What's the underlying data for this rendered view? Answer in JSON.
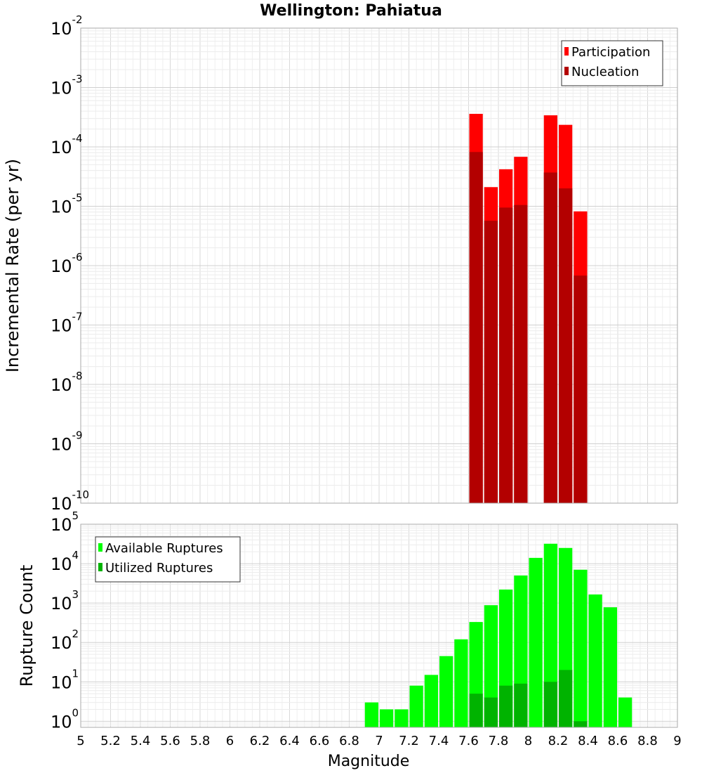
{
  "title": "Wellington: Pahiatua",
  "chart_data": [
    {
      "type": "bar",
      "yscale": "log",
      "ylabel": "Incremental Rate (per yr)",
      "ylim": [
        1e-10,
        0.01
      ],
      "yticks": [
        {
          "base": "10",
          "exp": "-10"
        },
        {
          "base": "10",
          "exp": "-9"
        },
        {
          "base": "10",
          "exp": "-8"
        },
        {
          "base": "10",
          "exp": "-7"
        },
        {
          "base": "10",
          "exp": "-6"
        },
        {
          "base": "10",
          "exp": "-5"
        },
        {
          "base": "10",
          "exp": "-4"
        },
        {
          "base": "10",
          "exp": "-3"
        },
        {
          "base": "10",
          "exp": "-2"
        }
      ],
      "legend_position": "top-right",
      "bar_width": 0.1,
      "series": [
        {
          "name": "Participation",
          "color": "#ff0000",
          "points": [
            {
              "x": 7.65,
              "y": 0.00036
            },
            {
              "x": 7.75,
              "y": 2.1e-05
            },
            {
              "x": 7.85,
              "y": 4.2e-05
            },
            {
              "x": 7.95,
              "y": 6.8e-05
            },
            {
              "x": 8.15,
              "y": 0.00034
            },
            {
              "x": 8.25,
              "y": 0.000235
            },
            {
              "x": 8.35,
              "y": 8.2e-06
            }
          ]
        },
        {
          "name": "Nucleation",
          "color": "#b30000",
          "points": [
            {
              "x": 7.65,
              "y": 8.2e-05
            },
            {
              "x": 7.75,
              "y": 5.7e-06
            },
            {
              "x": 7.85,
              "y": 9.5e-06
            },
            {
              "x": 7.95,
              "y": 1.05e-05
            },
            {
              "x": 8.15,
              "y": 3.7e-05
            },
            {
              "x": 8.25,
              "y": 2e-05
            },
            {
              "x": 8.35,
              "y": 6.8e-07
            }
          ]
        }
      ]
    },
    {
      "type": "bar",
      "yscale": "log",
      "ylabel": "Rupture Count",
      "xlabel": "Magnitude",
      "ylim": [
        0.7,
        100000.0
      ],
      "xlim": [
        5,
        9
      ],
      "xticks": [
        "5",
        "5.2",
        "5.4",
        "5.6",
        "5.8",
        "6",
        "6.2",
        "6.4",
        "6.6",
        "6.8",
        "7",
        "7.2",
        "7.4",
        "7.6",
        "7.8",
        "8",
        "8.2",
        "8.4",
        "8.6",
        "8.8",
        "9"
      ],
      "yticks": [
        {
          "base": "10",
          "exp": "0"
        },
        {
          "base": "10",
          "exp": "1"
        },
        {
          "base": "10",
          "exp": "2"
        },
        {
          "base": "10",
          "exp": "3"
        },
        {
          "base": "10",
          "exp": "4"
        },
        {
          "base": "10",
          "exp": "5"
        }
      ],
      "legend_position": "top-left",
      "bar_width": 0.1,
      "series": [
        {
          "name": "Available Ruptures",
          "color": "#00ff00",
          "points": [
            {
              "x": 6.95,
              "y": 3
            },
            {
              "x": 7.05,
              "y": 2
            },
            {
              "x": 7.15,
              "y": 2
            },
            {
              "x": 7.25,
              "y": 8
            },
            {
              "x": 7.35,
              "y": 15
            },
            {
              "x": 7.45,
              "y": 45
            },
            {
              "x": 7.55,
              "y": 120
            },
            {
              "x": 7.65,
              "y": 330
            },
            {
              "x": 7.75,
              "y": 880
            },
            {
              "x": 7.85,
              "y": 2200
            },
            {
              "x": 7.95,
              "y": 5000
            },
            {
              "x": 8.05,
              "y": 14000
            },
            {
              "x": 8.15,
              "y": 32000
            },
            {
              "x": 8.25,
              "y": 25000
            },
            {
              "x": 8.35,
              "y": 7000
            },
            {
              "x": 8.45,
              "y": 1650
            },
            {
              "x": 8.55,
              "y": 780
            },
            {
              "x": 8.65,
              "y": 4
            }
          ]
        },
        {
          "name": "Utilized Ruptures",
          "color": "#00b300",
          "points": [
            {
              "x": 7.65,
              "y": 5
            },
            {
              "x": 7.75,
              "y": 4
            },
            {
              "x": 7.85,
              "y": 8
            },
            {
              "x": 7.95,
              "y": 9
            },
            {
              "x": 8.15,
              "y": 10
            },
            {
              "x": 8.25,
              "y": 20
            },
            {
              "x": 8.35,
              "y": 1
            }
          ]
        }
      ]
    }
  ]
}
